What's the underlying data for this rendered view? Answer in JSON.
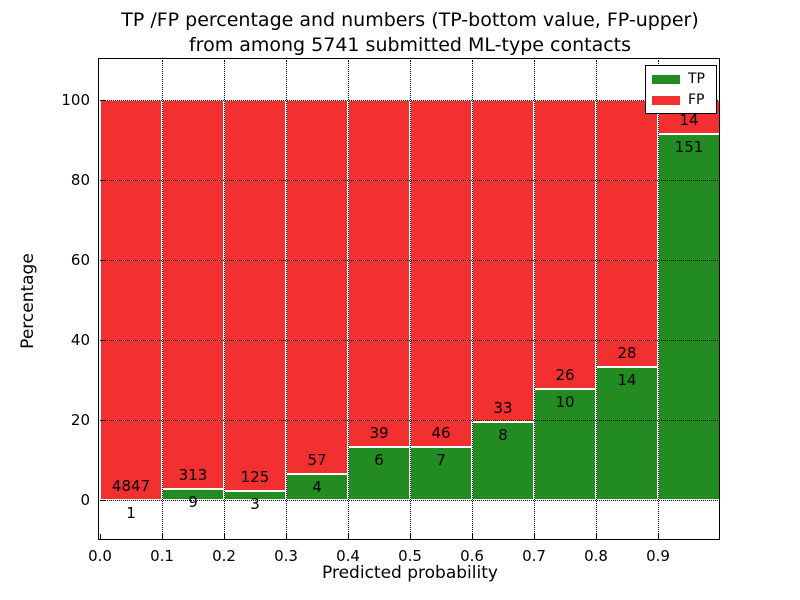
{
  "title": {
    "line1": "TP /FP percentage and numbers (TP-bottom value, FP-upper)",
    "line2": "from among 5741 submitted ML-type contacts"
  },
  "chart_data": {
    "type": "bar",
    "subtype": "stacked-percentage-histogram",
    "title": "TP /FP percentage and numbers (TP-bottom value, FP-upper) from among 5741 submitted ML-type contacts",
    "xlabel": "Predicted probability",
    "ylabel": "Percentage",
    "total_contacts": 5741,
    "xlim": [
      0.0,
      1.0
    ],
    "ylim": [
      -10,
      110
    ],
    "xticks": [
      "0.0",
      "0.1",
      "0.2",
      "0.3",
      "0.4",
      "0.5",
      "0.6",
      "0.7",
      "0.8",
      "0.9"
    ],
    "yticks": [
      0,
      20,
      40,
      60,
      80,
      100
    ],
    "grid": "dotted-black",
    "bin_edges": [
      0.0,
      0.1,
      0.2,
      0.3,
      0.4,
      0.5,
      0.6,
      0.7,
      0.8,
      0.9,
      1.0
    ],
    "series": [
      {
        "name": "TP",
        "color": "#228b22",
        "counts": [
          1,
          9,
          3,
          4,
          6,
          7,
          8,
          10,
          14,
          151
        ]
      },
      {
        "name": "FP",
        "color": "#f23030",
        "counts": [
          4847,
          313,
          125,
          57,
          39,
          46,
          33,
          26,
          28,
          14
        ]
      }
    ],
    "tp_percent_of_bin": [
      0.0,
      2.8,
      2.3,
      6.6,
      13.3,
      13.2,
      19.5,
      27.8,
      33.3,
      91.5
    ],
    "bar_edge_color": "#ffffff",
    "legend": {
      "position": "upper right",
      "entries": [
        {
          "label": "TP",
          "color": "#228b22"
        },
        {
          "label": "FP",
          "color": "#f23030"
        }
      ]
    }
  }
}
